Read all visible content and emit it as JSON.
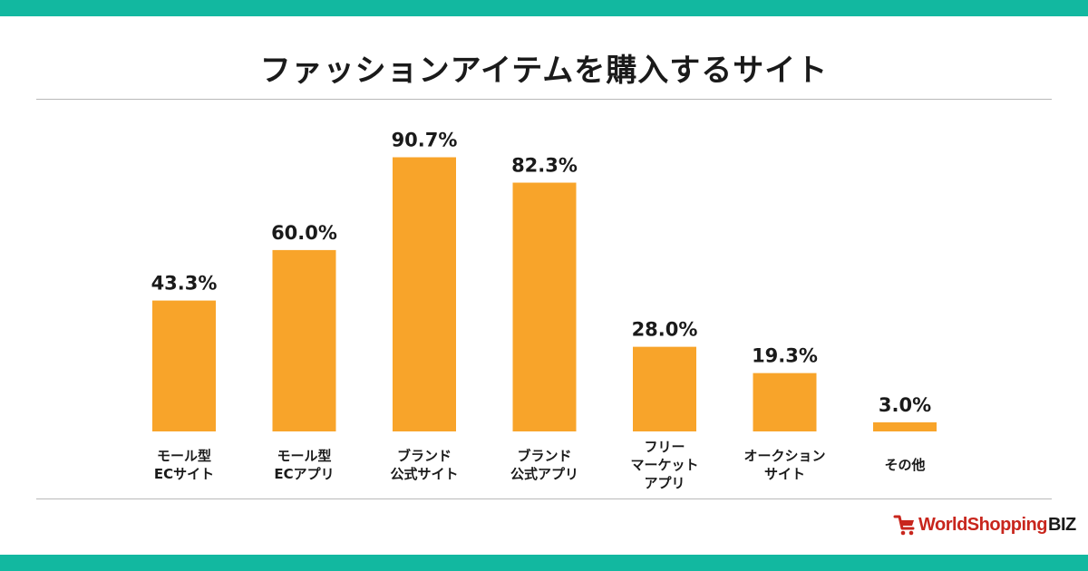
{
  "title": "ファッションアイテムを購入するサイト",
  "colors": {
    "band": "#12b8a0",
    "bar": "#f8a42a",
    "rule": "#b9b9b9",
    "logo_red": "#c8261d"
  },
  "logo": {
    "main": "WorldShopping",
    "suffix": "BIZ",
    "icon": "shopping-cart-icon"
  },
  "chart_data": {
    "type": "bar",
    "unit": "%",
    "categories": [
      [
        "モール型",
        "ECサイト"
      ],
      [
        "モール型",
        "ECアプリ"
      ],
      [
        "ブランド",
        "公式サイト"
      ],
      [
        "ブランド",
        "公式アプリ"
      ],
      [
        "フリー",
        "マーケット",
        "アプリ"
      ],
      [
        "オークション",
        "サイト"
      ],
      [
        "その他"
      ]
    ],
    "values": [
      43.3,
      60.0,
      90.7,
      82.3,
      28.0,
      19.3,
      3.0
    ],
    "value_labels": [
      "43.3%",
      "60.0%",
      "90.7%",
      "82.3%",
      "28.0%",
      "19.3%",
      "3.0%"
    ],
    "ylim": [
      0,
      100
    ],
    "grid": false,
    "legend": "none"
  }
}
